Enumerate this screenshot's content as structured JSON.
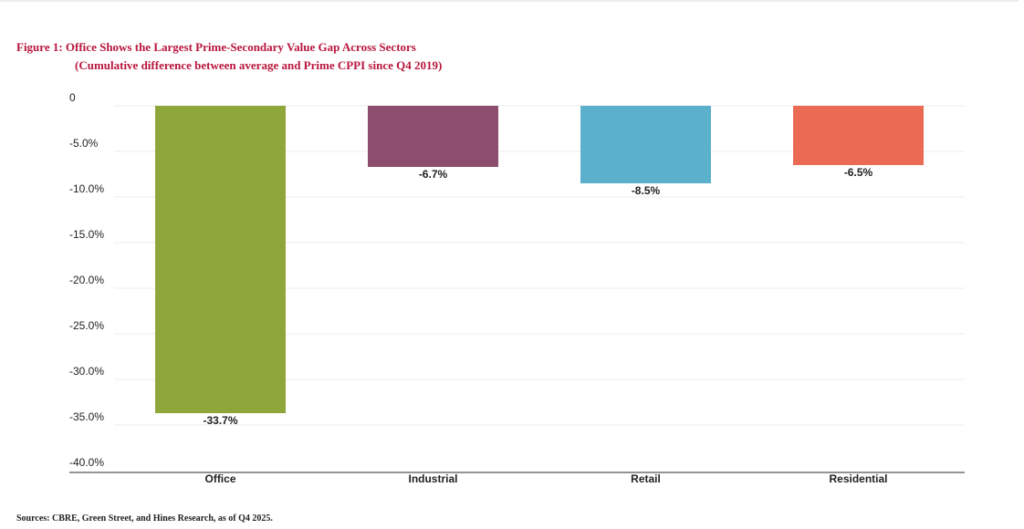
{
  "title": "Figure 1: Office Shows the Largest Prime-Secondary Value Gap Across Sectors",
  "subtitle": "(Cumulative difference between average and Prime CPPI since Q4 2019)",
  "source": "Sources: CBRE, Green Street, and Hines Research, as of Q4 2025.",
  "chart_data": {
    "type": "bar",
    "categories": [
      "Office",
      "Industrial",
      "Retail",
      "Residential"
    ],
    "values": [
      -33.7,
      -6.7,
      -8.5,
      -6.5
    ],
    "data_labels": [
      "-33.7%",
      "-6.7%",
      "-8.5%",
      "-6.5%"
    ],
    "colors": [
      "#8ea63a",
      "#8c4d6e",
      "#5bb0cc",
      "#ea6a54"
    ],
    "ylim": [
      -40,
      0
    ],
    "yticks": [
      0,
      -5,
      -10,
      -15,
      -20,
      -25,
      -30,
      -35,
      -40
    ],
    "ytick_labels": [
      "0",
      "-5.0%",
      "-10.0%",
      "-15.0%",
      "-20.0%",
      "-25.0%",
      "-30.0%",
      "-35.0%",
      "-40.0%"
    ],
    "grid": true,
    "legend": "none"
  }
}
